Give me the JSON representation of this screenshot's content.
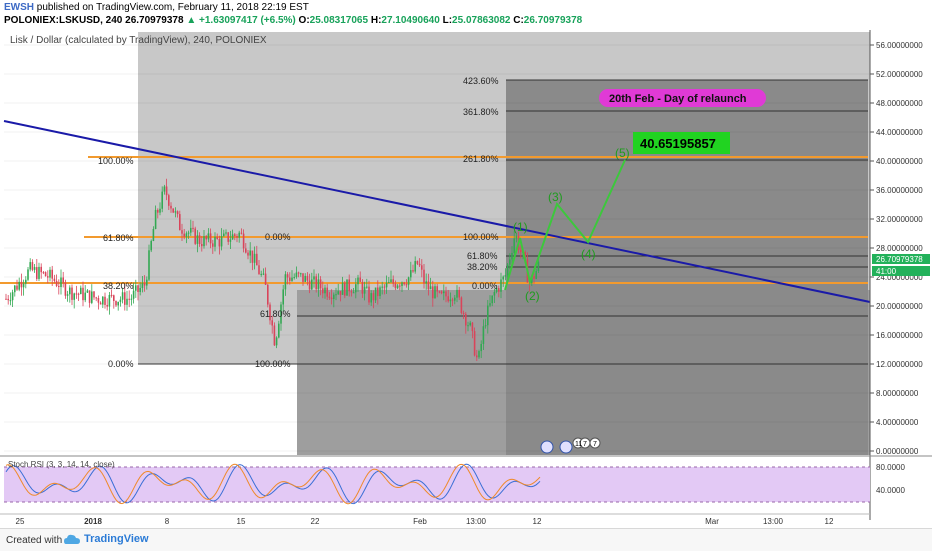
{
  "header": {
    "user": "EWSH",
    "published_text": "published on TradingView.com, February 11, 2018 22:19 EST",
    "symbol": "POLONIEX:LSKUSD, 240",
    "last": "26.70979378",
    "change": "+1.63097417 (+6.5%)",
    "open_label": "O:",
    "open": "25.08317065",
    "high_label": "H:",
    "high": "27.10490640",
    "low_label": "L:",
    "low": "25.07863082",
    "close_label": "C:",
    "close": "26.70979378"
  },
  "footer": {
    "created_with": "Created with",
    "brand": "TradingView"
  },
  "chart_data": {
    "type": "line",
    "title": "Lisk / Dollar (calculated by TradingView), 240, POLONIEX",
    "ylim": [
      0,
      58
    ],
    "y_ticks": [
      "56.00000000",
      "52.00000000",
      "48.00000000",
      "44.00000000",
      "40.00000000",
      "36.00000000",
      "32.00000000",
      "28.00000000",
      "24.00000000",
      "20.00000000",
      "16.00000000",
      "12.00000000",
      "8.00000000",
      "4.00000000",
      "0.00000000"
    ],
    "x_ticks": [
      "25",
      "2018",
      "8",
      "15",
      "22",
      "Feb",
      "13:00",
      "12",
      "Mar",
      "13:00",
      "12"
    ],
    "last_price_label": "26.70979378",
    "countdown_label": "41:00",
    "fib_sets": [
      {
        "labels": [
          "100.00%",
          "61.80%",
          "38.20%",
          "0.00%"
        ]
      },
      {
        "labels": [
          "0.00%",
          "61.80%",
          "100.00%"
        ]
      },
      {
        "labels": [
          "423.60%",
          "361.80%",
          "261.80%",
          "100.00%",
          "61.80%",
          "38.20%",
          "0.00%"
        ]
      }
    ],
    "wave_labels": [
      "(1)",
      "(2)",
      "(3)",
      "(4)",
      "(5)"
    ],
    "target_label": "40.65195857",
    "annotation": "20th Feb - Day of relaunch",
    "event_labels": [
      "11",
      "7",
      "7"
    ],
    "stoch": {
      "title": "Stoch RSI (3, 3, 14, 14, close)",
      "y_ticks": [
        "80.0000",
        "40.0000"
      ]
    }
  }
}
